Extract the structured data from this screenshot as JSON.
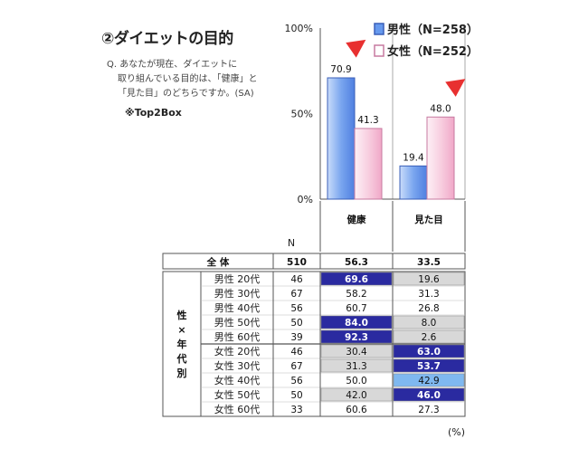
{
  "title": "②ダイエットの目的",
  "question_line1": "Q. あなたが現在、ダイエットに",
  "question_line2": "取り組んでいる目的は、「健康」と",
  "question_line3": "「見た目」のどちらですか。(SA)",
  "top2box": "※Top2Box",
  "unit_note": "(%)",
  "chart_data": [
    {
      "type": "bar",
      "categories": [
        "健康",
        "見た目"
      ],
      "series": [
        {
          "name": "男性（N=258）",
          "values": [
            70.9,
            19.4
          ],
          "color": "#6699ee"
        },
        {
          "name": "女性（N=252）",
          "values": [
            41.3,
            48.0
          ],
          "color": "#f9c6dc"
        }
      ],
      "ylim": [
        0,
        100
      ],
      "yticks": [
        "0%",
        "50%",
        "100%"
      ],
      "ytick_values": [
        0,
        50,
        100
      ],
      "highlight_arrows": "red triangles above highlighted bars"
    },
    {
      "type": "table",
      "n_header": "N",
      "total_row": {
        "label": "全 体",
        "n": "510",
        "values": [
          "56.3",
          "33.5"
        ]
      },
      "group_label": "性×年代別",
      "rows": [
        {
          "label": "男性 20代",
          "n": "46",
          "values": [
            "69.6",
            "19.6"
          ]
        },
        {
          "label": "男性 30代",
          "n": "67",
          "values": [
            "58.2",
            "31.3"
          ]
        },
        {
          "label": "男性 40代",
          "n": "56",
          "values": [
            "60.7",
            "26.8"
          ]
        },
        {
          "label": "男性 50代",
          "n": "50",
          "values": [
            "84.0",
            "8.0"
          ]
        },
        {
          "label": "男性 60代",
          "n": "39",
          "values": [
            "92.3",
            "2.6"
          ]
        },
        {
          "label": "女性 20代",
          "n": "46",
          "values": [
            "30.4",
            "63.0"
          ]
        },
        {
          "label": "女性 30代",
          "n": "67",
          "values": [
            "31.3",
            "53.7"
          ]
        },
        {
          "label": "女性 40代",
          "n": "56",
          "values": [
            "50.0",
            "42.9"
          ]
        },
        {
          "label": "女性 50代",
          "n": "50",
          "values": [
            "42.0",
            "46.0"
          ]
        },
        {
          "label": "女性 60代",
          "n": "33",
          "values": [
            "60.6",
            "27.3"
          ]
        }
      ],
      "cell_colors": {
        "dark": "#2a2aa0",
        "light_blue": "#7fb8f0",
        "gray": "#d8d8d8",
        "white": "#ffffff"
      }
    }
  ]
}
